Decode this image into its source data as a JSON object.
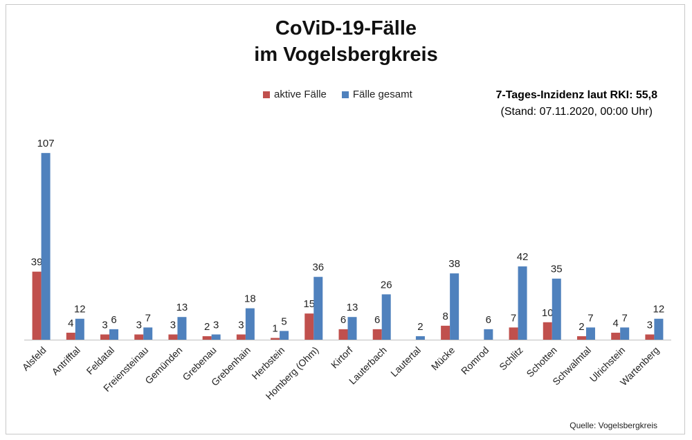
{
  "title_line1": "CoViD-19-Fälle",
  "title_line2": "im Vogelsbergkreis",
  "incidence_line1": "7-Tages-Inzidenz laut RKI: 55,8",
  "incidence_line2": "(Stand: 07.11.2020, 00:00 Uhr)",
  "source": "Quelle: Vogelsbergkreis",
  "colors": {
    "aktive": "#c0504d",
    "gesamt": "#4f81bd",
    "axis": "#bfbfbf"
  },
  "chart_data": {
    "type": "bar",
    "categories": [
      "Alsfeld",
      "Antrifftal",
      "Feldatal",
      "Freiensteinau",
      "Gemünden",
      "Grebenau",
      "Grebenhain",
      "Herbstein",
      "Homberg (Ohm)",
      "Kirtorf",
      "Lauterbach",
      "Lautertal",
      "Mücke",
      "Romrod",
      "Schlitz",
      "Schotten",
      "Schwalmtal",
      "Ulrichstein",
      "Wartenberg"
    ],
    "series": [
      {
        "name": "aktive Fälle",
        "values": [
          39,
          4,
          3,
          3,
          3,
          2,
          3,
          1,
          15,
          6,
          6,
          0,
          8,
          0,
          7,
          10,
          2,
          4,
          3
        ],
        "show_label": [
          true,
          true,
          true,
          true,
          true,
          true,
          true,
          true,
          true,
          true,
          true,
          false,
          true,
          false,
          true,
          true,
          true,
          true,
          true
        ]
      },
      {
        "name": "Fälle gesamt",
        "values": [
          107,
          12,
          6,
          7,
          13,
          3,
          18,
          5,
          36,
          13,
          26,
          2,
          38,
          6,
          42,
          35,
          7,
          7,
          12
        ]
      }
    ],
    "ylim": [
      0,
      115
    ],
    "legend": "top",
    "grid": false
  }
}
